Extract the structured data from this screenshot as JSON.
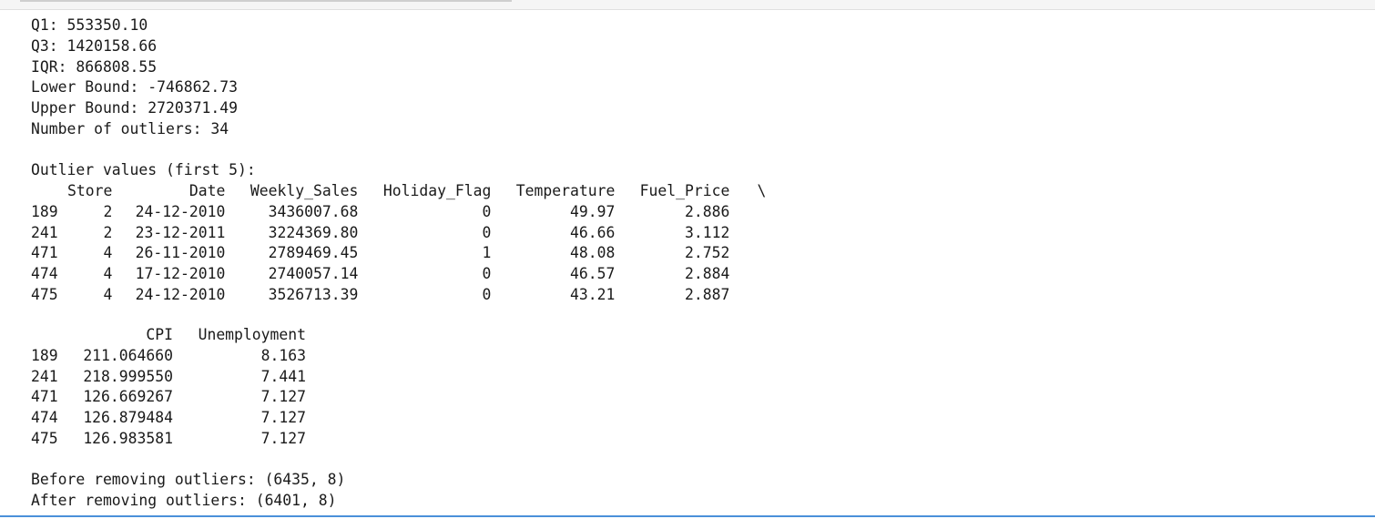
{
  "stats": {
    "q1": "Q1: 553350.10",
    "q3": "Q3: 1420158.66",
    "iqr": "IQR: 866808.55",
    "lower_bound": "Lower Bound: -746862.73",
    "upper_bound": "Upper Bound: 2720371.49",
    "num_outliers": "Number of outliers: 34"
  },
  "outlier_header": "Outlier values (first 5):",
  "table_a": {
    "columns": [
      "Store",
      "Date",
      "Weekly_Sales",
      "Holiday_Flag",
      "Temperature",
      "Fuel_Price"
    ],
    "continuation": "\\",
    "rows": [
      {
        "index": "189",
        "cells": [
          "2",
          "24-12-2010",
          "3436007.68",
          "0",
          "49.97",
          "2.886"
        ]
      },
      {
        "index": "241",
        "cells": [
          "2",
          "23-12-2011",
          "3224369.80",
          "0",
          "46.66",
          "3.112"
        ]
      },
      {
        "index": "471",
        "cells": [
          "4",
          "26-11-2010",
          "2789469.45",
          "1",
          "48.08",
          "2.752"
        ]
      },
      {
        "index": "474",
        "cells": [
          "4",
          "17-12-2010",
          "2740057.14",
          "0",
          "46.57",
          "2.884"
        ]
      },
      {
        "index": "475",
        "cells": [
          "4",
          "24-12-2010",
          "3526713.39",
          "0",
          "43.21",
          "2.887"
        ]
      }
    ]
  },
  "table_b": {
    "columns": [
      "CPI",
      "Unemployment"
    ],
    "rows": [
      {
        "index": "189",
        "cells": [
          "211.064660",
          "8.163"
        ]
      },
      {
        "index": "241",
        "cells": [
          "218.999550",
          "7.441"
        ]
      },
      {
        "index": "471",
        "cells": [
          "126.669267",
          "7.127"
        ]
      },
      {
        "index": "474",
        "cells": [
          "126.879484",
          "7.127"
        ]
      },
      {
        "index": "475",
        "cells": [
          "126.983581",
          "7.127"
        ]
      }
    ]
  },
  "shapes": {
    "before": "Before removing outliers: (6435, 8)",
    "after": "After removing outliers: (6401, 8)"
  }
}
